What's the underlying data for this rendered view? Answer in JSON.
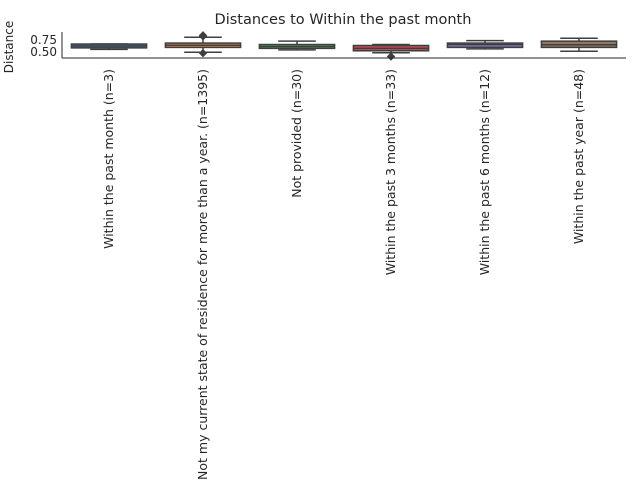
{
  "chart_data": {
    "type": "box",
    "title": "Distances to Within the past month",
    "xlabel": "",
    "ylabel": "Distance",
    "ylim": [
      0.38,
      0.92
    ],
    "yticks": [
      0.5,
      0.75
    ],
    "ytick_labels": [
      "0.50",
      "0.75"
    ],
    "grid": false,
    "categories": [
      "Within the past month (n=3)",
      "Not my current state of residence for more than a year. (n=1395)",
      "Not provided (n=30)",
      "Within the past 3 months (n=33)",
      "Within the past 6 months (n=12)",
      "Within the past year (n=48)"
    ],
    "boxes": [
      {
        "min": 0.56,
        "q1": 0.59,
        "median": 0.63,
        "q3": 0.67,
        "max": 0.67,
        "outliers": [],
        "color": "#4c72b0"
      },
      {
        "min": 0.5,
        "q1": 0.6,
        "median": 0.645,
        "q3": 0.69,
        "max": 0.81,
        "outliers": [
          0.85,
          0.83,
          0.48
        ],
        "color": "#dd8452"
      },
      {
        "min": 0.55,
        "q1": 0.58,
        "median": 0.62,
        "q3": 0.66,
        "max": 0.73,
        "outliers": [],
        "color": "#55a868"
      },
      {
        "min": 0.49,
        "q1": 0.53,
        "median": 0.58,
        "q3": 0.64,
        "max": 0.66,
        "outliers": [
          0.41
        ],
        "color": "#c44e52"
      },
      {
        "min": 0.57,
        "q1": 0.6,
        "median": 0.66,
        "q3": 0.69,
        "max": 0.74,
        "outliers": [],
        "color": "#8172b3"
      },
      {
        "min": 0.52,
        "q1": 0.6,
        "median": 0.655,
        "q3": 0.73,
        "max": 0.79,
        "outliers": [],
        "color": "#937860"
      }
    ]
  }
}
